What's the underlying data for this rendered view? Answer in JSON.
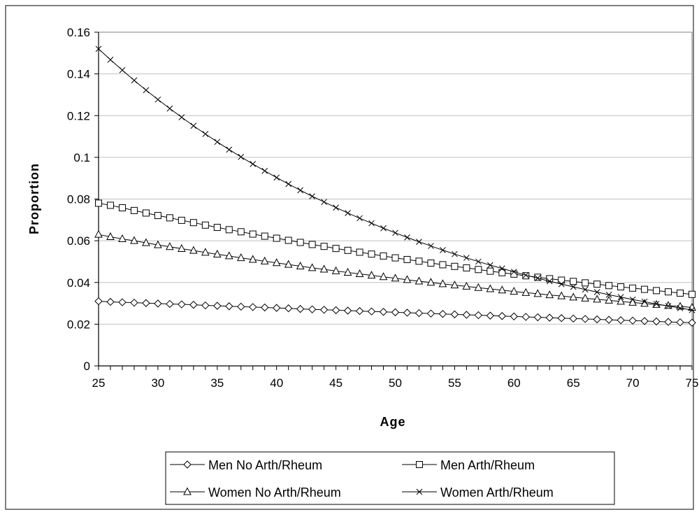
{
  "chart_data": {
    "type": "line",
    "title": "",
    "xlabel": "Age",
    "ylabel": "Proportion",
    "xlim": [
      25,
      75
    ],
    "ylim": [
      0,
      0.16
    ],
    "x_ticks": [
      25,
      30,
      35,
      40,
      45,
      50,
      55,
      60,
      65,
      70,
      75
    ],
    "y_ticks": [
      0,
      0.02,
      0.04,
      0.06,
      0.08,
      0.1,
      0.12,
      0.14,
      0.16
    ],
    "y_tick_labels": [
      "0",
      "0.02",
      "0.04",
      "0.06",
      "0.08",
      "0.1",
      "0.12",
      "0.14",
      "0.16"
    ],
    "grid": "horizontal",
    "legend_position": "bottom",
    "x": [
      25,
      26,
      27,
      28,
      29,
      30,
      31,
      32,
      33,
      34,
      35,
      36,
      37,
      38,
      39,
      40,
      41,
      42,
      43,
      44,
      45,
      46,
      47,
      48,
      49,
      50,
      51,
      52,
      53,
      54,
      55,
      56,
      57,
      58,
      59,
      60,
      61,
      62,
      63,
      64,
      65,
      66,
      67,
      68,
      69,
      70,
      71,
      72,
      73,
      74,
      75
    ],
    "series": [
      {
        "name": "Men No Arth/Rheum",
        "marker": "diamond",
        "values": [
          0.031,
          0.0307,
          0.0305,
          0.0303,
          0.0301,
          0.0299,
          0.0297,
          0.0295,
          0.0293,
          0.029,
          0.0288,
          0.0286,
          0.0284,
          0.0282,
          0.028,
          0.0278,
          0.0276,
          0.0273,
          0.0271,
          0.0269,
          0.0267,
          0.0265,
          0.0263,
          0.0261,
          0.0259,
          0.0257,
          0.0255,
          0.0253,
          0.0251,
          0.0249,
          0.0247,
          0.0245,
          0.0243,
          0.0241,
          0.0239,
          0.0237,
          0.0235,
          0.0233,
          0.0231,
          0.0229,
          0.0227,
          0.0225,
          0.0223,
          0.0221,
          0.0219,
          0.0217,
          0.0215,
          0.0213,
          0.0211,
          0.0209,
          0.0207
        ]
      },
      {
        "name": "Men Arth/Rheum",
        "marker": "square",
        "values": [
          0.078,
          0.077,
          0.0758,
          0.0745,
          0.0733,
          0.0721,
          0.071,
          0.0698,
          0.0687,
          0.0675,
          0.0664,
          0.0653,
          0.0643,
          0.0632,
          0.0622,
          0.0612,
          0.0602,
          0.0592,
          0.0582,
          0.0573,
          0.0563,
          0.0554,
          0.0545,
          0.0536,
          0.0527,
          0.0518,
          0.051,
          0.0502,
          0.0493,
          0.0485,
          0.0477,
          0.047,
          0.0462,
          0.0454,
          0.0447,
          0.044,
          0.0432,
          0.0425,
          0.0418,
          0.0411,
          0.0405,
          0.0398,
          0.0392,
          0.0385,
          0.0379,
          0.0373,
          0.0367,
          0.0361,
          0.0355,
          0.0349,
          0.0343
        ]
      },
      {
        "name": "Women No Arth/Rheum",
        "marker": "triangle",
        "values": [
          0.063,
          0.0619,
          0.0609,
          0.06,
          0.059,
          0.058,
          0.0571,
          0.0562,
          0.0553,
          0.0544,
          0.0535,
          0.0527,
          0.0518,
          0.051,
          0.0502,
          0.0494,
          0.0486,
          0.0478,
          0.047,
          0.0463,
          0.0455,
          0.0448,
          0.0441,
          0.0434,
          0.0427,
          0.042,
          0.0413,
          0.0406,
          0.04,
          0.0393,
          0.0387,
          0.0381,
          0.0375,
          0.0369,
          0.0363,
          0.0357,
          0.0351,
          0.0346,
          0.034,
          0.0335,
          0.0329,
          0.0324,
          0.0319,
          0.0314,
          0.0309,
          0.0304,
          0.0299,
          0.0294,
          0.0289,
          0.0285,
          0.028
        ]
      },
      {
        "name": "Women Arth/Rheum",
        "marker": "x",
        "values": [
          0.152,
          0.1468,
          0.1418,
          0.1369,
          0.1322,
          0.1277,
          0.1234,
          0.1192,
          0.1151,
          0.1112,
          0.1074,
          0.1037,
          0.1002,
          0.0968,
          0.0935,
          0.0903,
          0.0872,
          0.0842,
          0.0813,
          0.0786,
          0.0759,
          0.0733,
          0.0708,
          0.0684,
          0.066,
          0.0638,
          0.0616,
          0.0595,
          0.0575,
          0.0555,
          0.0536,
          0.0518,
          0.05,
          0.0483,
          0.0467,
          0.0451,
          0.0435,
          0.0421,
          0.0406,
          0.0392,
          0.0379,
          0.0366,
          0.0354,
          0.0341,
          0.033,
          0.0318,
          0.0308,
          0.0297,
          0.0287,
          0.0277,
          0.0268
        ]
      }
    ]
  }
}
